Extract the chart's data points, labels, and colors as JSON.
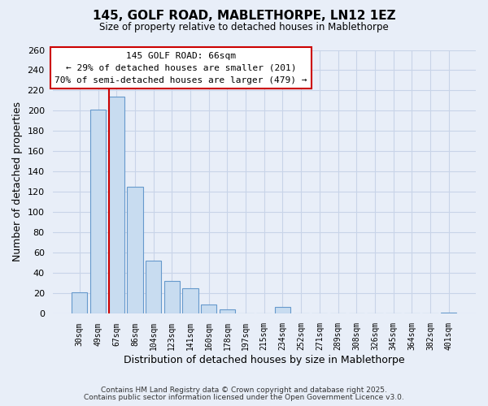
{
  "title_line1": "145, GOLF ROAD, MABLETHORPE, LN12 1EZ",
  "title_line2": "Size of property relative to detached houses in Mablethorpe",
  "xlabel": "Distribution of detached houses by size in Mablethorpe",
  "ylabel": "Number of detached properties",
  "categories": [
    "30sqm",
    "49sqm",
    "67sqm",
    "86sqm",
    "104sqm",
    "123sqm",
    "141sqm",
    "160sqm",
    "178sqm",
    "197sqm",
    "215sqm",
    "234sqm",
    "252sqm",
    "271sqm",
    "289sqm",
    "308sqm",
    "326sqm",
    "345sqm",
    "364sqm",
    "382sqm",
    "401sqm"
  ],
  "values": [
    21,
    201,
    214,
    125,
    52,
    32,
    25,
    9,
    4,
    0,
    0,
    7,
    0,
    0,
    0,
    0,
    0,
    0,
    0,
    0,
    1
  ],
  "bar_color": "#c8dcf0",
  "bar_edge_color": "#6699cc",
  "highlight_index": 2,
  "highlight_line_color": "#cc0000",
  "ylim": [
    0,
    260
  ],
  "yticks": [
    0,
    20,
    40,
    60,
    80,
    100,
    120,
    140,
    160,
    180,
    200,
    220,
    240,
    260
  ],
  "annotation_box_color": "#ffffff",
  "annotation_box_edge": "#cc0000",
  "annotation_line1": "145 GOLF ROAD: 66sqm",
  "annotation_line2": "← 29% of detached houses are smaller (201)",
  "annotation_line3": "70% of semi-detached houses are larger (479) →",
  "footer_line1": "Contains HM Land Registry data © Crown copyright and database right 2025.",
  "footer_line2": "Contains public sector information licensed under the Open Government Licence v3.0.",
  "background_color": "#e8eef8",
  "grid_color": "#c8d4e8",
  "plot_bg_color": "#e8eef8"
}
